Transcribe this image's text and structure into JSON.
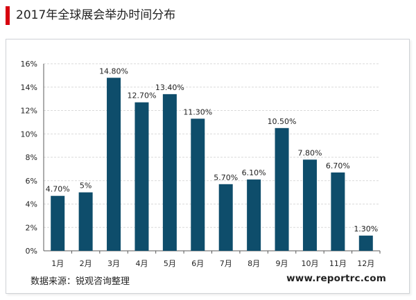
{
  "header": {
    "title": "2017年全球展会举办时间分布"
  },
  "footer": {
    "source": "数据来源：锐观咨询整理",
    "website": "www.reportrc.com"
  },
  "colors": {
    "accent": "#d7000f",
    "bar": "#0e4d6b",
    "grid": "#d9d9d9",
    "axis": "#595959"
  },
  "chart_data": {
    "type": "bar",
    "categories": [
      "1月",
      "2月",
      "3月",
      "4月",
      "5月",
      "6月",
      "7月",
      "8月",
      "9月",
      "10月",
      "11月",
      "12月"
    ],
    "values": [
      4.7,
      5,
      14.8,
      12.7,
      13.4,
      11.3,
      5.7,
      6.1,
      10.5,
      7.8,
      6.7,
      1.3
    ],
    "data_labels": [
      "4.70%",
      "5%",
      "14.80%",
      "12.70%",
      "13.40%",
      "11.30%",
      "5.70%",
      "6.10%",
      "10.50%",
      "7.80%",
      "6.70%",
      "1.30%"
    ],
    "yticks": [
      "0%",
      "2%",
      "4%",
      "6%",
      "8%",
      "10%",
      "12%",
      "14%",
      "16%"
    ],
    "ylim": [
      0,
      16
    ],
    "unit": "%",
    "grid": true,
    "legend": "none",
    "title": "2017年全球展会举办时间分布",
    "xlabel": "",
    "ylabel": ""
  }
}
